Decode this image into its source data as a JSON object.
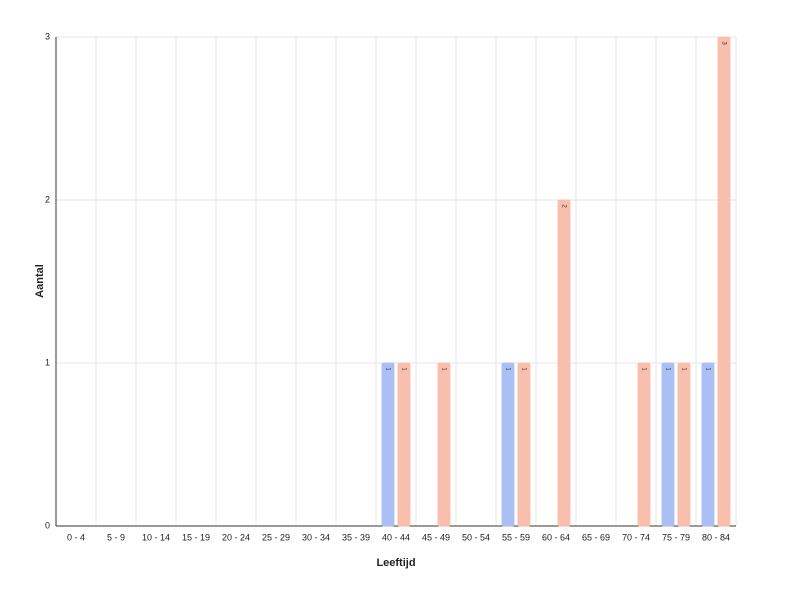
{
  "chart_data": {
    "type": "bar",
    "x_label": "Leeftijd",
    "y_label": "Aantal",
    "categories": [
      "0 - 4",
      "5 - 9",
      "10 - 14",
      "15 - 19",
      "20 - 24",
      "25 - 29",
      "30 - 34",
      "35 - 39",
      "40 - 44",
      "45 - 49",
      "50 - 54",
      "55 - 59",
      "60 - 64",
      "65 - 69",
      "70 - 74",
      "75 - 79",
      "80 - 84"
    ],
    "series": [
      {
        "color": "#aabff5",
        "values": [
          0,
          0,
          0,
          0,
          0,
          0,
          0,
          0,
          1,
          0,
          0,
          1,
          0,
          0,
          0,
          1,
          1
        ]
      },
      {
        "color": "#f8bfac",
        "values": [
          0,
          0,
          0,
          0,
          0,
          0,
          0,
          0,
          1,
          1,
          0,
          1,
          2,
          0,
          1,
          1,
          3
        ]
      }
    ],
    "ylim": [
      0,
      3
    ],
    "yticks": [
      0,
      1,
      2,
      3
    ],
    "grid": true
  }
}
